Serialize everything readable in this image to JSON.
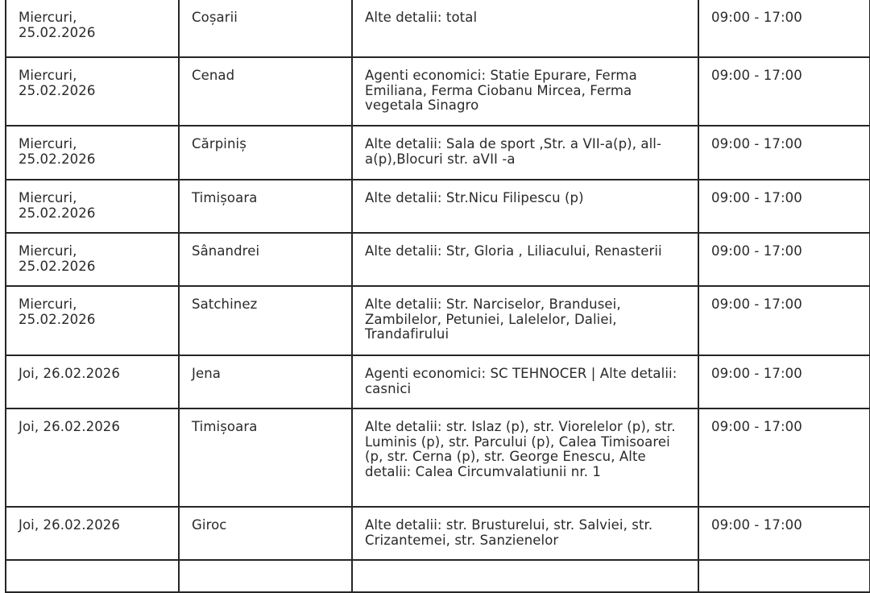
{
  "rows": [
    {
      "date": "Miercuri, 25.02.2026",
      "locality": "Coșarii",
      "details": "Alte detalii: total",
      "interval": "09:00 - 17:00"
    },
    {
      "date": "Miercuri, 25.02.2026",
      "locality": "Cenad",
      "details": "Agenti economici: Statie Epurare, Ferma Emiliana, Ferma Ciobanu Mircea, Ferma vegetala Sinagro",
      "interval": "09:00 - 17:00"
    },
    {
      "date": "Miercuri, 25.02.2026",
      "locality": "Cărpiniș",
      "details": "Alte detalii: Sala de sport ,Str. a VII-a(p), all-a(p),Blocuri str. aVII -a",
      "interval": "09:00 - 17:00"
    },
    {
      "date": "Miercuri, 25.02.2026",
      "locality": "Timișoara",
      "details": "Alte detalii: Str.Nicu Filipescu (p)",
      "interval": "09:00 - 17:00"
    },
    {
      "date": "Miercuri, 25.02.2026",
      "locality": "Sânandrei",
      "details": "Alte detalii: Str, Gloria , Liliacului, Renasterii",
      "interval": "09:00 - 17:00"
    },
    {
      "date": "Miercuri, 25.02.2026",
      "locality": "Satchinez",
      "details": "Alte detalii: Str. Narciselor, Brandusei, Zambilelor, Petuniei, Lalelelor, Daliei, Trandafirului",
      "interval": "09:00 - 17:00"
    },
    {
      "date": "Joi, 26.02.2026",
      "locality": "Jena",
      "details": "Agenti economici: SC TEHNOCER | Alte detalii: casnici",
      "interval": "09:00 - 17:00"
    },
    {
      "date": "Joi, 26.02.2026",
      "locality": "Timișoara",
      "details": "Alte detalii: str. Islaz (p), str. Viorelelor (p), str. Luminis (p), str. Parcului (p), Calea Timisoarei (p, str. Cerna (p),  str. George Enescu, Alte detalii: Calea Circumvalatiunii nr. 1",
      "interval": "09:00 - 17:00"
    },
    {
      "date": "Joi, 26.02.2026",
      "locality": "Giroc",
      "details": "Alte detalii: str. Brusturelui, str. Salviei, str. Crizantemei, str. Sanzienelor",
      "interval": "09:00 - 17:00"
    },
    {
      "date": "",
      "locality": "",
      "details": "",
      "interval": ""
    }
  ]
}
